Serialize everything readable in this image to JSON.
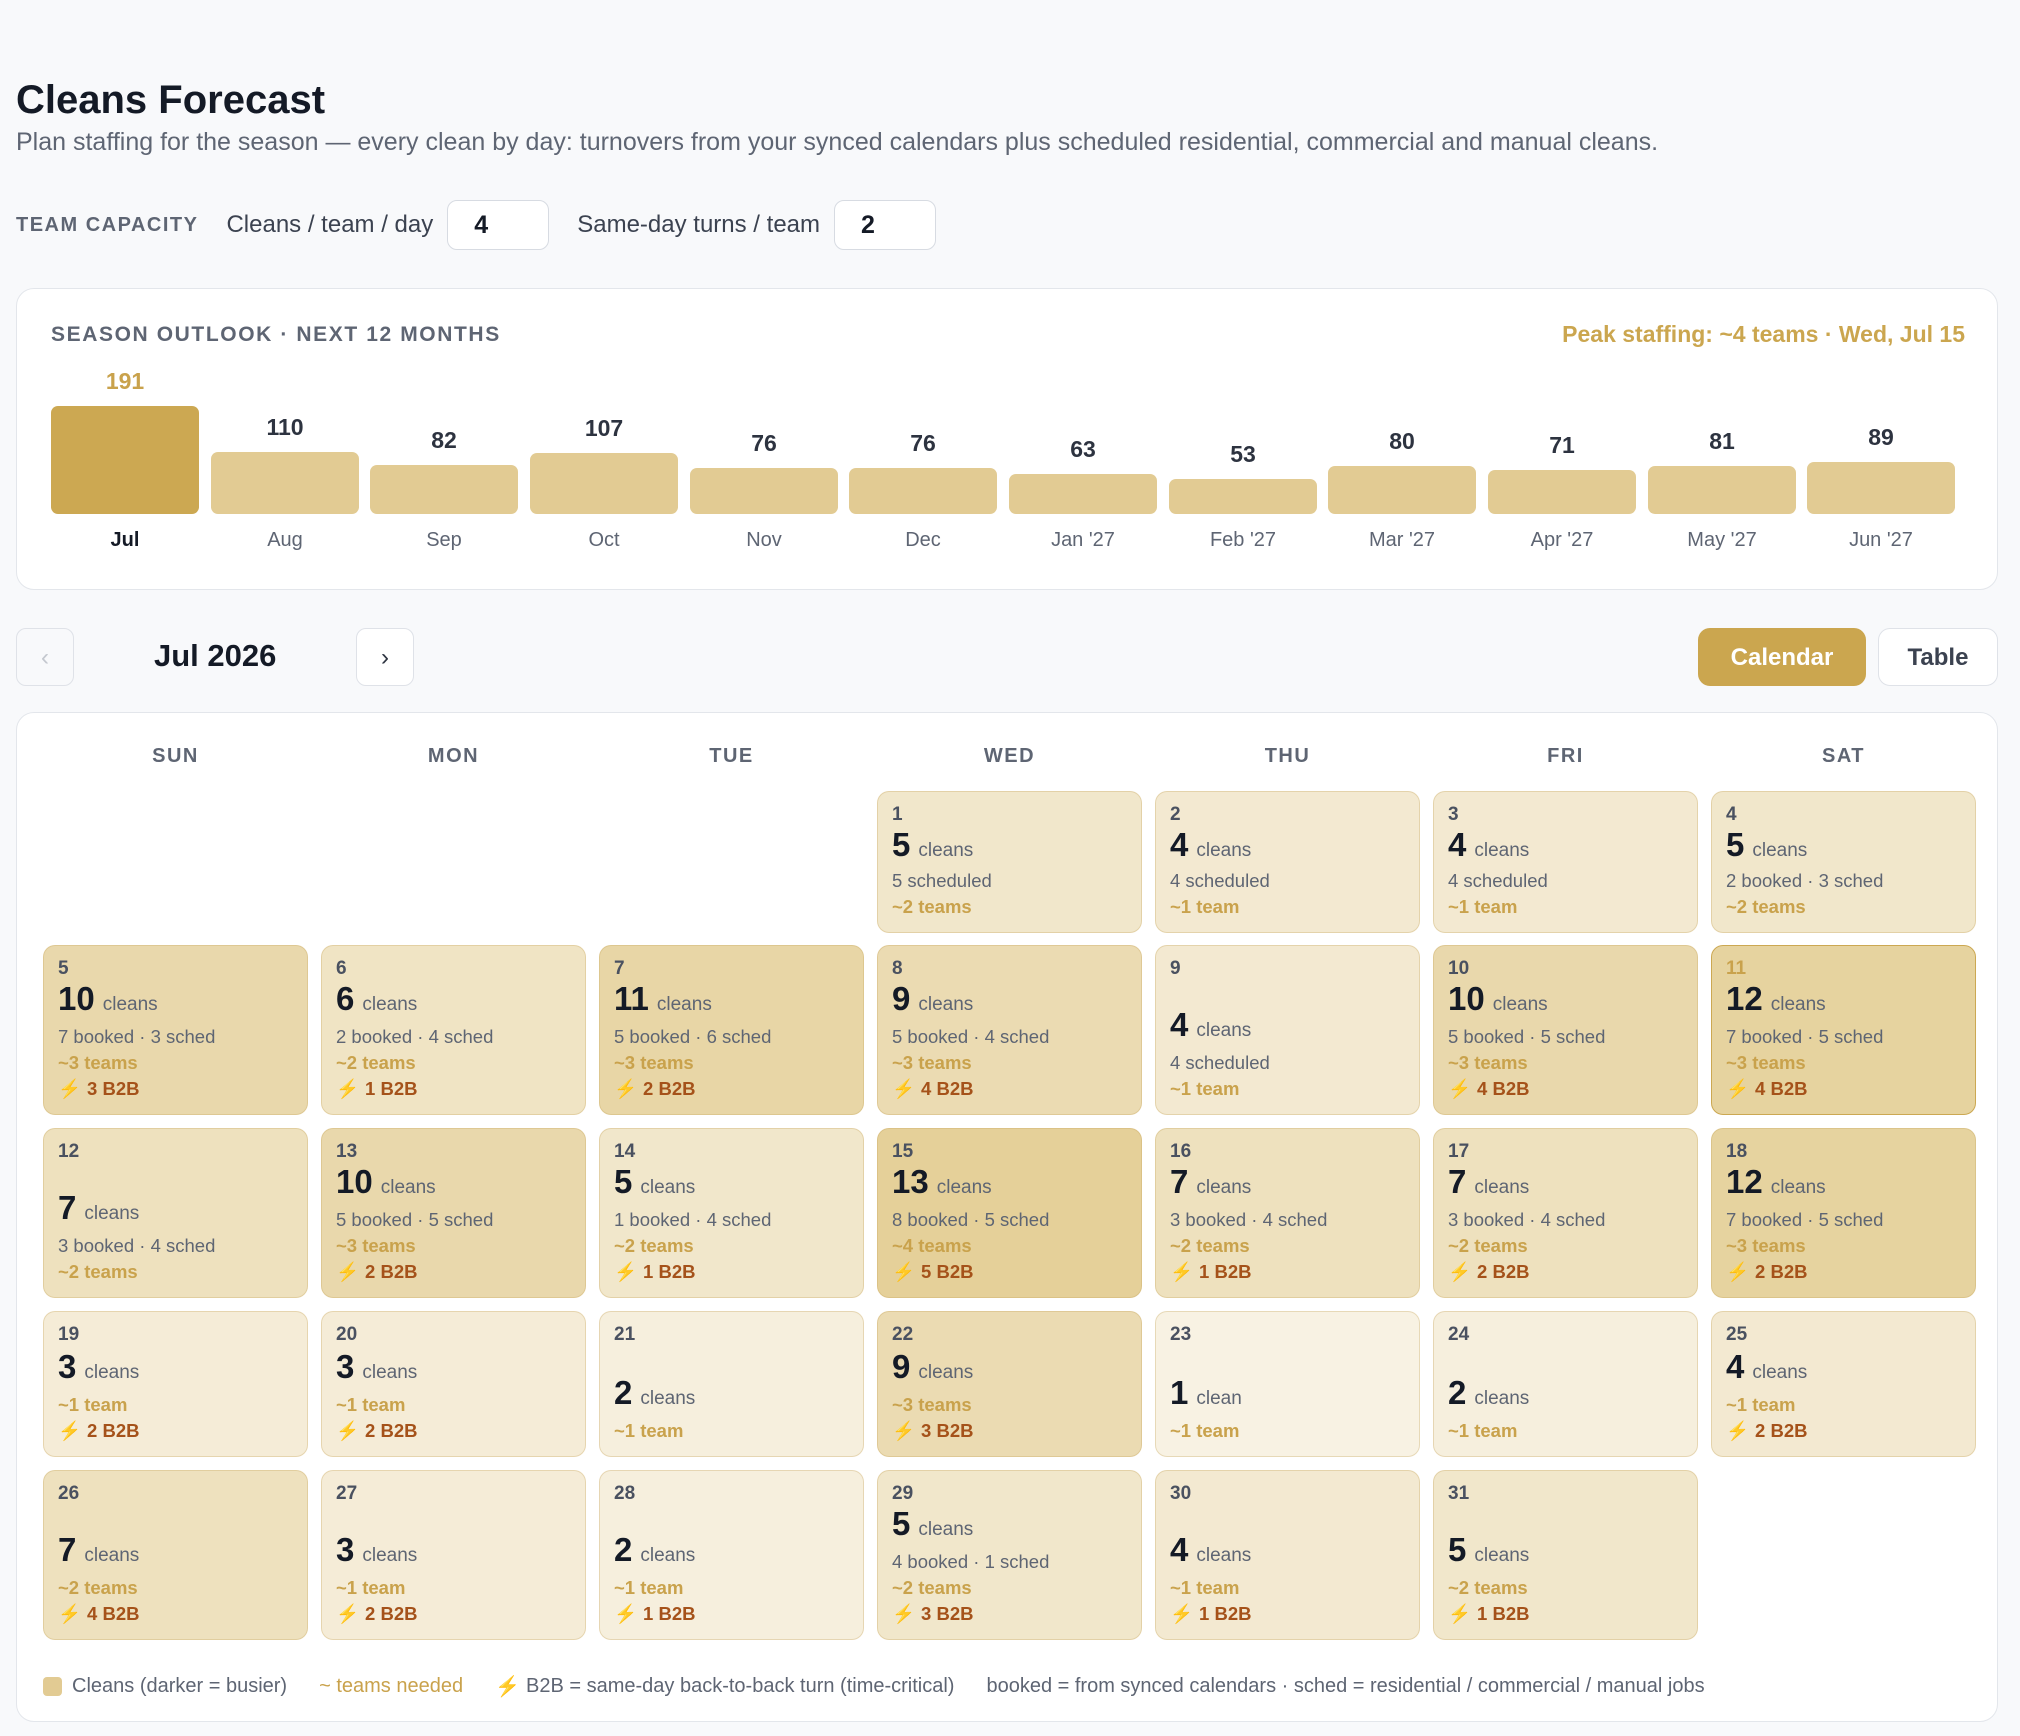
{
  "header": {
    "title": "Cleans Forecast",
    "subtitle": "Plan staffing for the season — every clean by day: turnovers from your synced calendars plus scheduled residential, commercial and manual cleans."
  },
  "capacity": {
    "label": "TEAM CAPACITY",
    "per_day_label": "Cleans / team / day",
    "per_day_value": "4",
    "turns_label": "Same-day turns / team",
    "turns_value": "2"
  },
  "outlook": {
    "title": "SEASON OUTLOOK · NEXT 12 MONTHS",
    "peak": "Peak staffing: ~4 teams · Wed, Jul 15",
    "months": [
      {
        "label": "Jul",
        "value": "191"
      },
      {
        "label": "Aug",
        "value": "110"
      },
      {
        "label": "Sep",
        "value": "82"
      },
      {
        "label": "Oct",
        "value": "107"
      },
      {
        "label": "Nov",
        "value": "76"
      },
      {
        "label": "Dec",
        "value": "76"
      },
      {
        "label": "Jan '27",
        "value": "63"
      },
      {
        "label": "Feb '27",
        "value": "53"
      },
      {
        "label": "Mar '27",
        "value": "80"
      },
      {
        "label": "Apr '27",
        "value": "71"
      },
      {
        "label": "May '27",
        "value": "81"
      },
      {
        "label": "Jun '27",
        "value": "89"
      }
    ]
  },
  "nav": {
    "prev": "‹",
    "next": "›",
    "month": "Jul 2026",
    "calendar_label": "Calendar",
    "table_label": "Table"
  },
  "calendar": {
    "weekdays": [
      "SUN",
      "MON",
      "TUE",
      "WED",
      "THU",
      "FRI",
      "SAT"
    ],
    "days": [
      {
        "d": "1",
        "c": "5",
        "u": "cleans",
        "bd": "5 scheduled",
        "t": "~2 teams",
        "b": ""
      },
      {
        "d": "2",
        "c": "4",
        "u": "cleans",
        "bd": "4 scheduled",
        "t": "~1 team",
        "b": ""
      },
      {
        "d": "3",
        "c": "4",
        "u": "cleans",
        "bd": "4 scheduled",
        "t": "~1 team",
        "b": ""
      },
      {
        "d": "4",
        "c": "5",
        "u": "cleans",
        "bd": "2 booked · 3 sched",
        "t": "~2 teams",
        "b": ""
      },
      {
        "d": "5",
        "c": "10",
        "u": "cleans",
        "bd": "7 booked · 3 sched",
        "t": "~3 teams",
        "b": "3 B2B"
      },
      {
        "d": "6",
        "c": "6",
        "u": "cleans",
        "bd": "2 booked · 4 sched",
        "t": "~2 teams",
        "b": "1 B2B"
      },
      {
        "d": "7",
        "c": "11",
        "u": "cleans",
        "bd": "5 booked · 6 sched",
        "t": "~3 teams",
        "b": "2 B2B"
      },
      {
        "d": "8",
        "c": "9",
        "u": "cleans",
        "bd": "5 booked · 4 sched",
        "t": "~3 teams",
        "b": "4 B2B"
      },
      {
        "d": "9",
        "c": "4",
        "u": "cleans",
        "bd": "4 scheduled",
        "t": "~1 team",
        "b": ""
      },
      {
        "d": "10",
        "c": "10",
        "u": "cleans",
        "bd": "5 booked · 5 sched",
        "t": "~3 teams",
        "b": "4 B2B"
      },
      {
        "d": "11",
        "c": "12",
        "u": "cleans",
        "bd": "7 booked · 5 sched",
        "t": "~3 teams",
        "b": "4 B2B"
      },
      {
        "d": "12",
        "c": "7",
        "u": "cleans",
        "bd": "3 booked · 4 sched",
        "t": "~2 teams",
        "b": ""
      },
      {
        "d": "13",
        "c": "10",
        "u": "cleans",
        "bd": "5 booked · 5 sched",
        "t": "~3 teams",
        "b": "2 B2B"
      },
      {
        "d": "14",
        "c": "5",
        "u": "cleans",
        "bd": "1 booked · 4 sched",
        "t": "~2 teams",
        "b": "1 B2B"
      },
      {
        "d": "15",
        "c": "13",
        "u": "cleans",
        "bd": "8 booked · 5 sched",
        "t": "~4 teams",
        "b": "5 B2B"
      },
      {
        "d": "16",
        "c": "7",
        "u": "cleans",
        "bd": "3 booked · 4 sched",
        "t": "~2 teams",
        "b": "1 B2B"
      },
      {
        "d": "17",
        "c": "7",
        "u": "cleans",
        "bd": "3 booked · 4 sched",
        "t": "~2 teams",
        "b": "2 B2B"
      },
      {
        "d": "18",
        "c": "12",
        "u": "cleans",
        "bd": "7 booked · 5 sched",
        "t": "~3 teams",
        "b": "2 B2B"
      },
      {
        "d": "19",
        "c": "3",
        "u": "cleans",
        "bd": "",
        "t": "~1 team",
        "b": "2 B2B"
      },
      {
        "d": "20",
        "c": "3",
        "u": "cleans",
        "bd": "",
        "t": "~1 team",
        "b": "2 B2B"
      },
      {
        "d": "21",
        "c": "2",
        "u": "cleans",
        "bd": "",
        "t": "~1 team",
        "b": ""
      },
      {
        "d": "22",
        "c": "9",
        "u": "cleans",
        "bd": "",
        "t": "~3 teams",
        "b": "3 B2B"
      },
      {
        "d": "23",
        "c": "1",
        "u": "clean",
        "bd": "",
        "t": "~1 team",
        "b": ""
      },
      {
        "d": "24",
        "c": "2",
        "u": "cleans",
        "bd": "",
        "t": "~1 team",
        "b": ""
      },
      {
        "d": "25",
        "c": "4",
        "u": "cleans",
        "bd": "",
        "t": "~1 team",
        "b": "2 B2B"
      },
      {
        "d": "26",
        "c": "7",
        "u": "cleans",
        "bd": "",
        "t": "~2 teams",
        "b": "4 B2B"
      },
      {
        "d": "27",
        "c": "3",
        "u": "cleans",
        "bd": "",
        "t": "~1 team",
        "b": "2 B2B"
      },
      {
        "d": "28",
        "c": "2",
        "u": "cleans",
        "bd": "",
        "t": "~1 team",
        "b": "1 B2B"
      },
      {
        "d": "29",
        "c": "5",
        "u": "cleans",
        "bd": "4 booked · 1 sched",
        "t": "~2 teams",
        "b": "3 B2B"
      },
      {
        "d": "30",
        "c": "4",
        "u": "cleans",
        "bd": "",
        "t": "~1 team",
        "b": "1 B2B"
      },
      {
        "d": "31",
        "c": "5",
        "u": "cleans",
        "bd": "",
        "t": "~2 teams",
        "b": "1 B2B"
      }
    ]
  },
  "legend": {
    "cleans": "Cleans (darker = busier)",
    "teams": "~ teams needed",
    "b2b": "B2B = same-day back-to-back turn (time-critical)",
    "sources": "booked = from synced calendars · sched = residential / commercial / manual jobs"
  },
  "colors": {
    "accent": "#cba64f",
    "bar": "#e2cb93",
    "b2b_text": "#a5521a"
  },
  "icons": {
    "b2b": "lightning-bolt-icon",
    "legend_swatch": "color-swatch-icon"
  }
}
